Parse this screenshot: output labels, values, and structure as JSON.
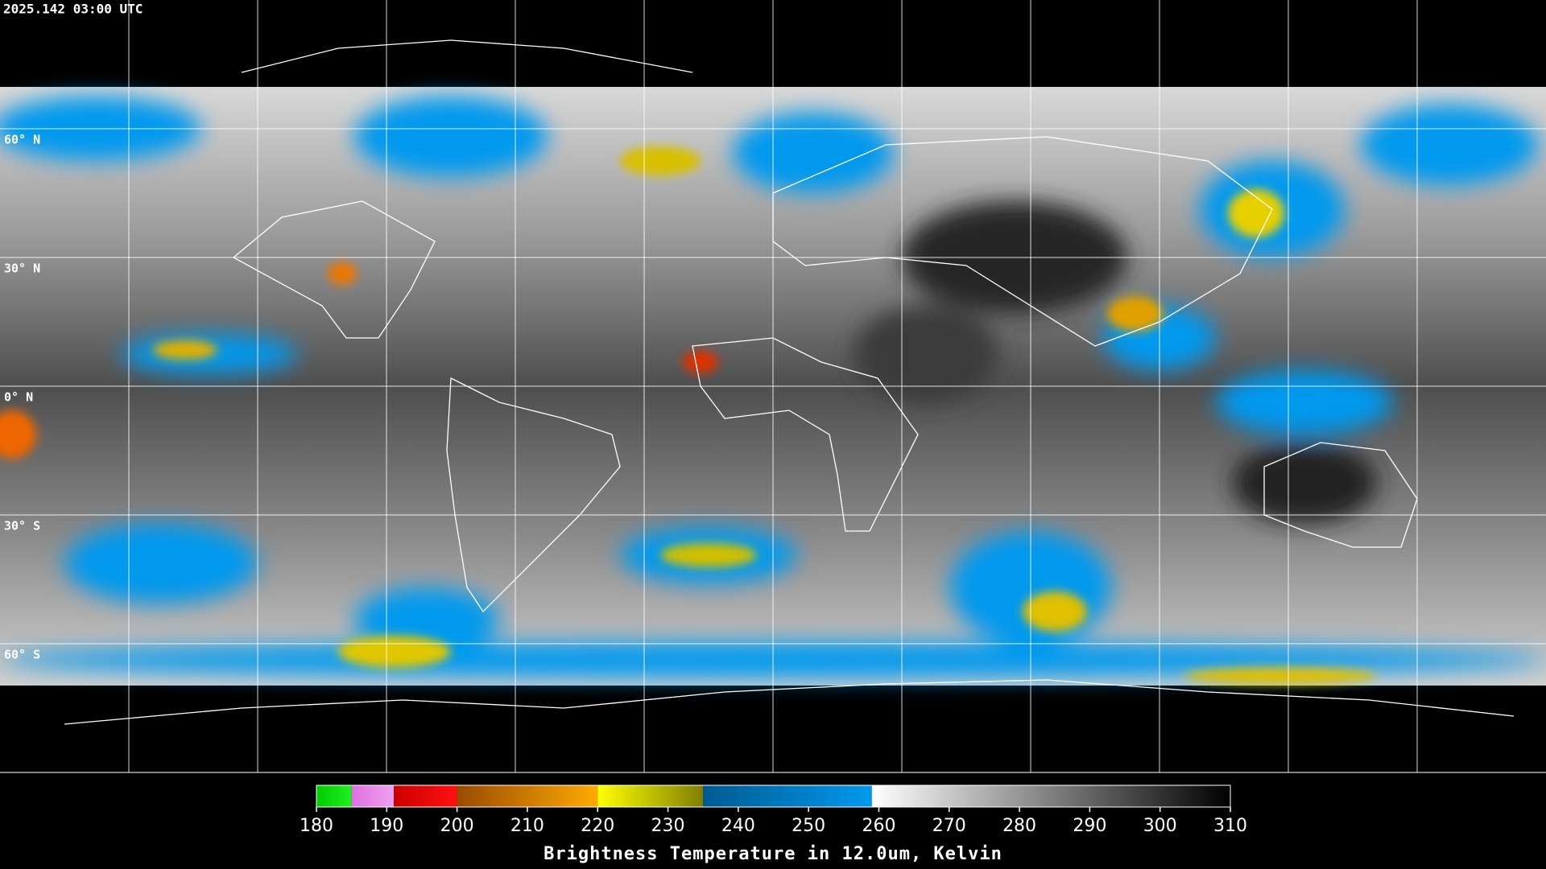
{
  "timestamp": "2025.142 03:00 UTC",
  "lat_labels": [
    "60° N",
    "30° N",
    "0° N",
    "30° S",
    "60° S"
  ],
  "colorbar": {
    "title": "Brightness Temperature in 12.0um, Kelvin",
    "lim": [
      180,
      310
    ],
    "ticks": [
      180,
      190,
      200,
      210,
      220,
      230,
      240,
      250,
      260,
      270,
      280,
      290,
      300,
      310
    ],
    "segments": [
      {
        "from": 180,
        "to": 185,
        "colors": [
          "#00cc00",
          "#22ee22"
        ]
      },
      {
        "from": 185,
        "to": 191,
        "colors": [
          "#e070e0",
          "#f0a0f0"
        ]
      },
      {
        "from": 191,
        "to": 200,
        "colors": [
          "#cc0000",
          "#ff1010"
        ]
      },
      {
        "from": 200,
        "to": 220,
        "colors": [
          "#9a4a00",
          "#ffaa00"
        ]
      },
      {
        "from": 220,
        "to": 235,
        "colors": [
          "#ffff00",
          "#808000"
        ]
      },
      {
        "from": 235,
        "to": 259,
        "colors": [
          "#005a90",
          "#0099ee"
        ]
      },
      {
        "from": 259,
        "to": 310,
        "colors": [
          "#ffffff",
          "#000000"
        ]
      }
    ]
  }
}
